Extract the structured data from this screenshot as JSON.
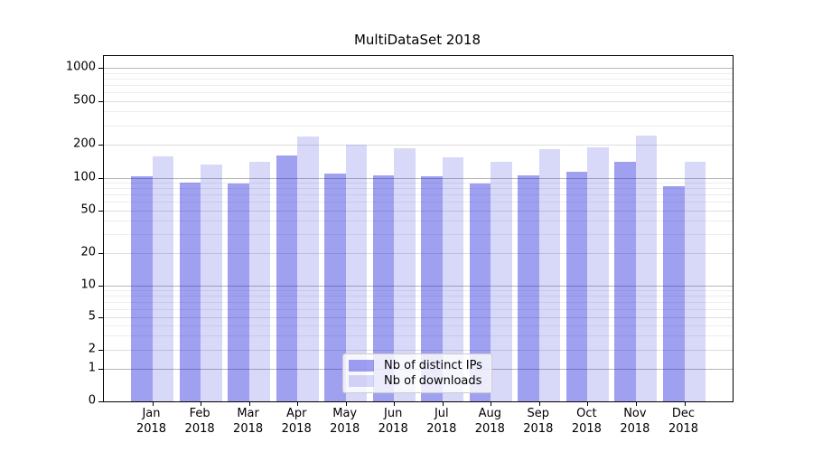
{
  "chart_data": {
    "type": "bar",
    "title": "MultiDataSet 2018",
    "categories": [
      "Jan",
      "Feb",
      "Mar",
      "Apr",
      "May",
      "Jun",
      "Jul",
      "Aug",
      "Sep",
      "Oct",
      "Nov",
      "Dec"
    ],
    "category_year": "2018",
    "series": [
      {
        "name": "Nb of distinct IPs",
        "color": "rgba(17,17,218,0.4)",
        "values": [
          103,
          90,
          88,
          160,
          110,
          106,
          103,
          88,
          105,
          113,
          140,
          83
        ]
      },
      {
        "name": "Nb of downloads",
        "color": "rgba(60,60,220,0.2)",
        "values": [
          157,
          133,
          140,
          237,
          200,
          185,
          155,
          140,
          182,
          188,
          243,
          140
        ]
      }
    ],
    "yscale": "symlog",
    "ylim": [
      0,
      1000
    ],
    "yticks": [
      0,
      1,
      2,
      5,
      10,
      20,
      50,
      100,
      200,
      500,
      1000
    ],
    "minor_gridlines": [
      3,
      4,
      6,
      7,
      8,
      9,
      30,
      40,
      60,
      70,
      80,
      90,
      300,
      400,
      600,
      700,
      800,
      900
    ],
    "grid": true,
    "legend_position": "lower-center-inside",
    "colors": {
      "major_grid_power10": "#b6b6b6",
      "major_grid_other": "#dcdcdc",
      "minor_grid": "#ededed",
      "axis": "#000000"
    }
  }
}
